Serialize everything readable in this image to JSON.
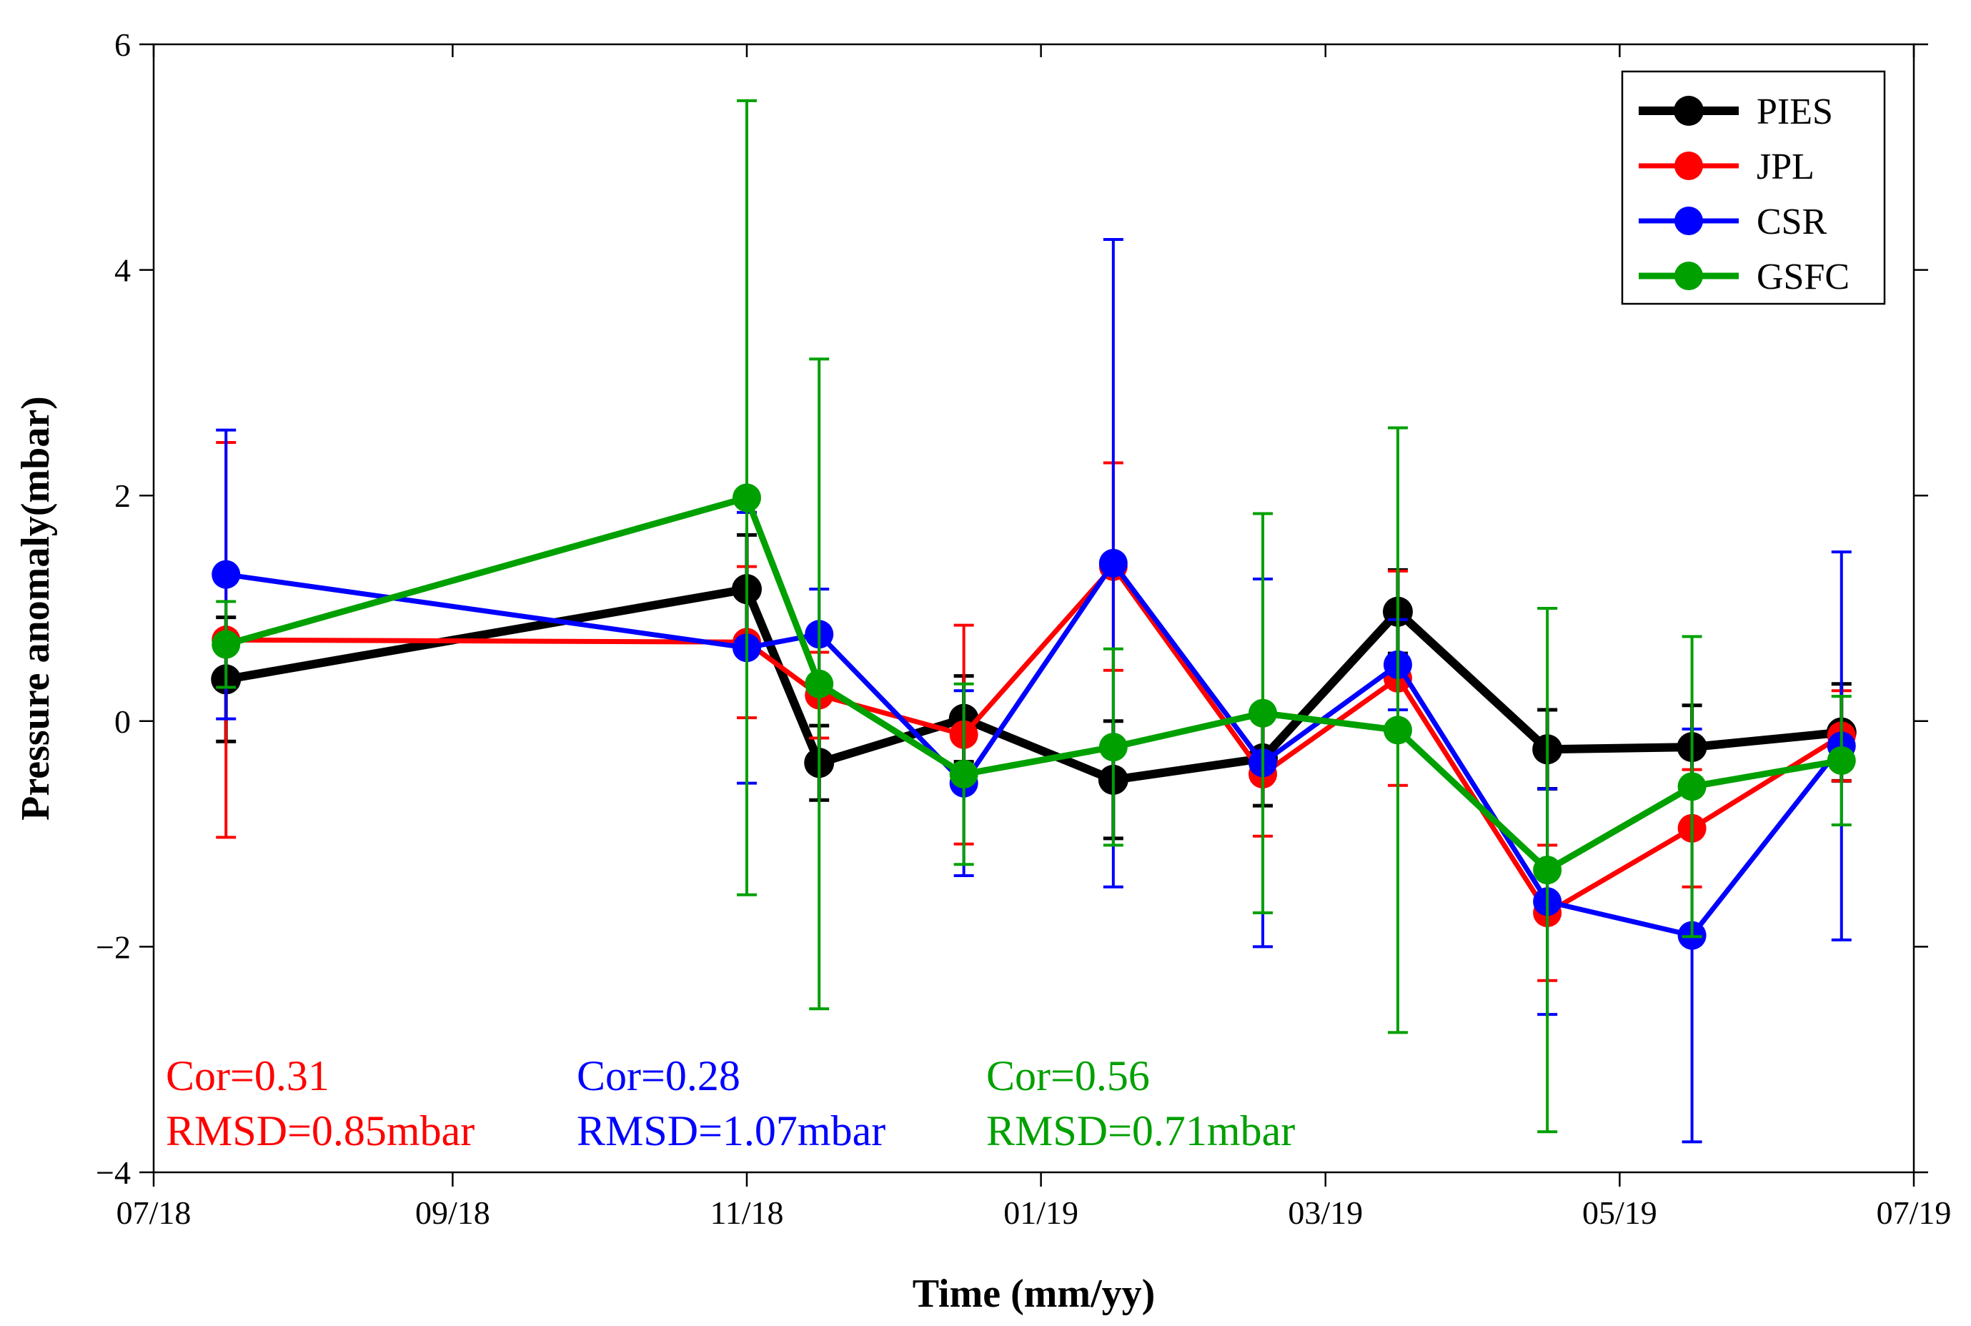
{
  "chart_data": {
    "type": "line",
    "title": "",
    "xlabel": "Time (mm/yy)",
    "ylabel": "Pressure anomaly(mbar)",
    "x_ticks": [
      "07/18",
      "09/18",
      "11/18",
      "01/19",
      "03/19",
      "05/19",
      "07/19"
    ],
    "x_tick_dates": [
      "2018-07-01",
      "2018-09-01",
      "2018-11-01",
      "2019-01-01",
      "2019-03-01",
      "2019-05-01",
      "2019-07-01"
    ],
    "xlim": [
      "2018-07-01",
      "2019-07-01"
    ],
    "y_ticks": [
      -4,
      -2,
      0,
      2,
      4,
      6
    ],
    "y_tick_labels": [
      "−4",
      "−2",
      "0",
      "2",
      "4",
      "6"
    ],
    "ylim": [
      -4,
      6
    ],
    "grid": false,
    "legend_position": "top-right",
    "series": [
      {
        "name": "PIES",
        "color": "#000000",
        "points": [
          {
            "x": "2018-07-16",
            "y": 0.37,
            "err": 0.55
          },
          {
            "x": "2018-11-01",
            "y": 1.17,
            "err": 0.48
          },
          {
            "x": "2018-11-16",
            "y": -0.37,
            "err": 0.33
          },
          {
            "x": "2018-12-16",
            "y": 0.02,
            "err": 0.38
          },
          {
            "x": "2019-01-16",
            "y": -0.52,
            "err": 0.52
          },
          {
            "x": "2019-02-16",
            "y": -0.33,
            "err": 0.42
          },
          {
            "x": "2019-03-16",
            "y": 0.97,
            "err": 0.37
          },
          {
            "x": "2019-04-16",
            "y": -0.25,
            "err": 0.35
          },
          {
            "x": "2019-05-16",
            "y": -0.23,
            "err": 0.37
          },
          {
            "x": "2019-06-16",
            "y": -0.1,
            "err": 0.43
          }
        ]
      },
      {
        "name": "JPL",
        "color": "#ff0000",
        "points": [
          {
            "x": "2018-07-16",
            "y": 0.72,
            "err": 1.75
          },
          {
            "x": "2018-11-01",
            "y": 0.7,
            "err": 0.67
          },
          {
            "x": "2018-11-16",
            "y": 0.23,
            "err": 0.38
          },
          {
            "x": "2018-12-16",
            "y": -0.12,
            "err": 0.97
          },
          {
            "x": "2019-01-16",
            "y": 1.37,
            "err": 0.92
          },
          {
            "x": "2019-02-16",
            "y": -0.47,
            "err": 0.55
          },
          {
            "x": "2019-03-16",
            "y": 0.38,
            "err": 0.95
          },
          {
            "x": "2019-04-16",
            "y": -1.7,
            "err": 0.6
          },
          {
            "x": "2019-05-16",
            "y": -0.95,
            "err": 0.52
          },
          {
            "x": "2019-06-16",
            "y": -0.13,
            "err": 0.4
          }
        ]
      },
      {
        "name": "CSR",
        "color": "#0000ff",
        "points": [
          {
            "x": "2018-07-16",
            "y": 1.3,
            "err": 1.28
          },
          {
            "x": "2018-11-01",
            "y": 0.65,
            "err": 1.2
          },
          {
            "x": "2018-11-16",
            "y": 0.77,
            "err": 0.4
          },
          {
            "x": "2018-12-16",
            "y": -0.55,
            "err": 0.82
          },
          {
            "x": "2019-01-16",
            "y": 1.4,
            "err": 2.87
          },
          {
            "x": "2019-02-16",
            "y": -0.37,
            "err": 1.63
          },
          {
            "x": "2019-03-16",
            "y": 0.5,
            "err": 0.4
          },
          {
            "x": "2019-04-16",
            "y": -1.6,
            "err": 1.0
          },
          {
            "x": "2019-05-16",
            "y": -1.9,
            "err": 1.83
          },
          {
            "x": "2019-06-16",
            "y": -0.22,
            "err": 1.72
          }
        ]
      },
      {
        "name": "GSFC",
        "color": "#00a000",
        "points": [
          {
            "x": "2018-07-16",
            "y": 0.68,
            "err": 0.38
          },
          {
            "x": "2018-11-01",
            "y": 1.98,
            "err": 3.52
          },
          {
            "x": "2018-11-16",
            "y": 0.33,
            "err": 2.88
          },
          {
            "x": "2018-12-16",
            "y": -0.47,
            "err": 0.8
          },
          {
            "x": "2019-01-16",
            "y": -0.23,
            "err": 0.87
          },
          {
            "x": "2019-02-16",
            "y": 0.07,
            "err": 1.77
          },
          {
            "x": "2019-03-16",
            "y": -0.08,
            "err": 2.68
          },
          {
            "x": "2019-04-16",
            "y": -1.32,
            "err": 2.32
          },
          {
            "x": "2019-05-16",
            "y": -0.58,
            "err": 1.33
          },
          {
            "x": "2019-06-16",
            "y": -0.35,
            "err": 0.57
          }
        ]
      }
    ],
    "annotations": [
      {
        "lines": [
          "Cor=0.31",
          "RMSD=0.85mbar"
        ],
        "color": "#ff0000"
      },
      {
        "lines": [
          "Cor=0.28",
          "RMSD=1.07mbar"
        ],
        "color": "#0000ff"
      },
      {
        "lines": [
          "Cor=0.56",
          "RMSD=0.71mbar"
        ],
        "color": "#00a000"
      }
    ]
  }
}
